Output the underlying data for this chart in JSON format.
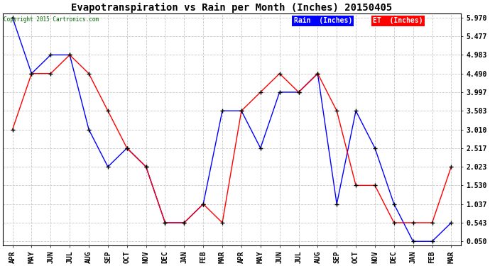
{
  "title": "Evapotranspiration vs Rain per Month (Inches) 20150405",
  "copyright": "Copyright 2015 Cartronics.com",
  "x_labels": [
    "APR",
    "MAY",
    "JUN",
    "JUL",
    "AUG",
    "SEP",
    "OCT",
    "NOV",
    "DEC",
    "JAN",
    "FEB",
    "MAR",
    "APR",
    "MAY",
    "JUN",
    "JUL",
    "AUG",
    "SEP",
    "OCT",
    "NOV",
    "DEC",
    "JAN",
    "FEB",
    "MAR"
  ],
  "rain_values": [
    5.97,
    4.49,
    4.983,
    4.983,
    3.01,
    2.023,
    2.517,
    2.023,
    0.543,
    0.543,
    1.037,
    3.503,
    3.503,
    2.517,
    3.997,
    3.997,
    4.49,
    1.037,
    3.503,
    2.517,
    1.037,
    0.05,
    0.05,
    0.543
  ],
  "et_values": [
    3.01,
    4.49,
    4.49,
    4.983,
    4.49,
    3.503,
    2.517,
    2.023,
    0.543,
    0.543,
    1.037,
    0.543,
    3.503,
    3.997,
    4.49,
    3.997,
    4.49,
    3.503,
    1.53,
    1.53,
    0.543,
    0.543,
    0.543,
    2.023
  ],
  "rain_color": "#0000ff",
  "et_color": "#ff0000",
  "ylim_min": 0.05,
  "ylim_max": 5.97,
  "yticks": [
    0.05,
    0.543,
    1.037,
    1.53,
    2.023,
    2.517,
    3.01,
    3.503,
    3.997,
    4.49,
    4.983,
    5.477,
    5.97
  ],
  "ytick_labels": [
    "0.050",
    "0.543",
    "1.037",
    "1.530",
    "2.023",
    "2.517",
    "3.010",
    "3.503",
    "3.997",
    "4.490",
    "4.983",
    "5.477",
    "5.970"
  ],
  "background_color": "#ffffff",
  "grid_color": "#c8c8c8",
  "title_fontsize": 10,
  "tick_fontsize": 7,
  "legend_rain_label": "Rain  (Inches)",
  "legend_et_label": "ET  (Inches)",
  "fig_width": 6.9,
  "fig_height": 3.75
}
